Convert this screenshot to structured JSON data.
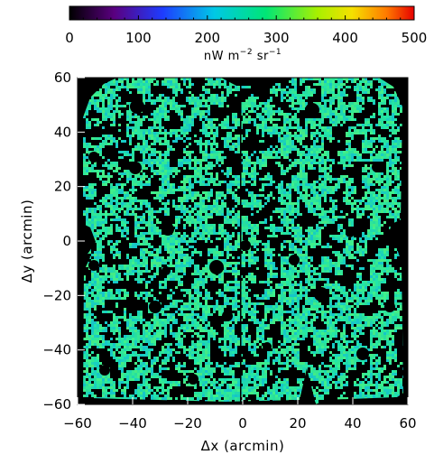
{
  "chart_data": {
    "type": "heatmap",
    "colorbar": {
      "min": 0,
      "max": 500,
      "ticks": [
        "0",
        "100",
        "200",
        "300",
        "400",
        "500"
      ],
      "tick_values": [
        0,
        100,
        200,
        300,
        400,
        500
      ],
      "unit_main": "nW m",
      "unit_exp1": "−2",
      "unit_mid": " sr",
      "unit_exp2": "−1",
      "colormap": "rainbow (black→purple→blue→cyan→green→yellow→orange→red)"
    },
    "xlabel": "Δx (arcmin)",
    "ylabel": "Δy (arcmin)",
    "xlim": [
      -60,
      60
    ],
    "ylim": [
      -60,
      60
    ],
    "x_ticks": [
      "−60",
      "−40",
      "−20",
      "0",
      "20",
      "40",
      "60"
    ],
    "x_tick_values": [
      -60,
      -40,
      -20,
      0,
      20,
      40,
      60
    ],
    "y_ticks": [
      "−60",
      "−40",
      "−20",
      "0",
      "20",
      "40",
      "60"
    ],
    "y_tick_values": [
      -60,
      -40,
      -20,
      0,
      20,
      40,
      60
    ],
    "map_description": "sky map of intensity; values mostly ~230–300 nW m^-2 sr^-1 (green-cyan), masked pixels shown black",
    "typical_value_range": [
      220,
      300
    ]
  }
}
